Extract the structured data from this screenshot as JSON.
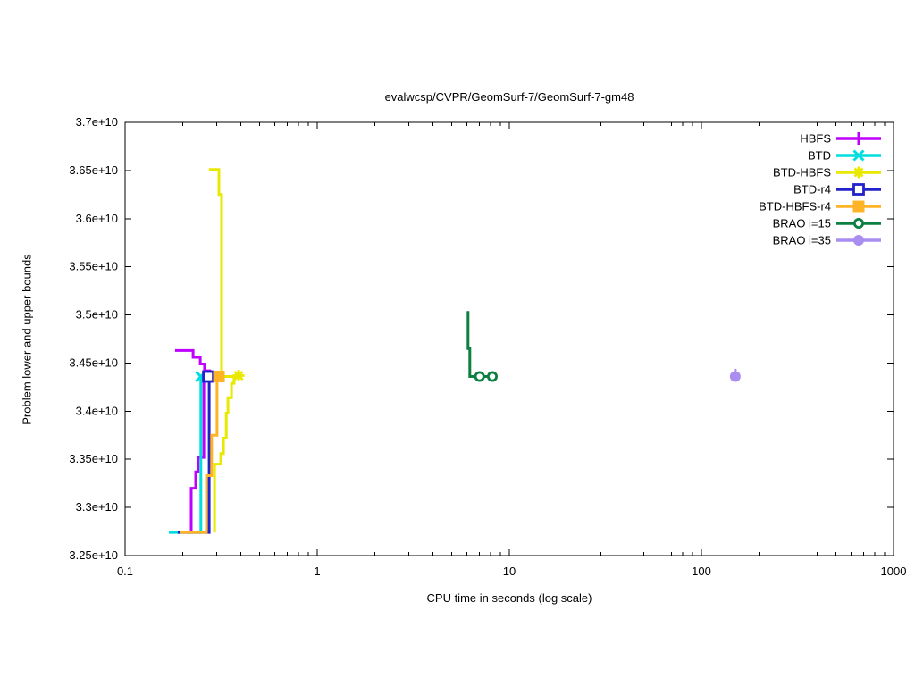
{
  "chart_data": {
    "type": "line",
    "title": "evalwcsp/CVPR/GeomSurf-7/GeomSurf-7-gm48",
    "xlabel": "CPU time in seconds (log scale)",
    "ylabel": "Problem lower and upper bounds",
    "x_scale": "log",
    "y_scale": "linear",
    "xlim": [
      0.1,
      1000
    ],
    "ylim": [
      3.25,
      3.7
    ],
    "value_unit": "1e+10",
    "grid": "off",
    "legend_position": "inside top-right",
    "x_ticks": [
      {
        "label": "0.1",
        "value": 0.1
      },
      {
        "label": "1",
        "value": 1
      },
      {
        "label": "10",
        "value": 10
      },
      {
        "label": "100",
        "value": 100
      },
      {
        "label": "1000",
        "value": 1000
      }
    ],
    "y_ticks": [
      {
        "label": "3.25e+10",
        "value": 3.25
      },
      {
        "label": "3.3e+10",
        "value": 3.3
      },
      {
        "label": "3.35e+10",
        "value": 3.35
      },
      {
        "label": "3.4e+10",
        "value": 3.4
      },
      {
        "label": "3.45e+10",
        "value": 3.45
      },
      {
        "label": "3.5e+10",
        "value": 3.5
      },
      {
        "label": "3.55e+10",
        "value": 3.55
      },
      {
        "label": "3.6e+10",
        "value": 3.6
      },
      {
        "label": "3.65e+10",
        "value": 3.65
      },
      {
        "label": "3.7e+10",
        "value": 3.7
      }
    ],
    "optimum_value": 3.436,
    "series": [
      {
        "name": "HBFS",
        "color": "#bf00ff",
        "marker": "plus",
        "points": [],
        "segments": [
          [
            [
              0.182,
              3.463
            ],
            [
              0.226,
              3.463
            ],
            [
              0.226,
              3.456
            ],
            [
              0.246,
              3.456
            ],
            [
              0.246,
              3.449
            ],
            [
              0.259,
              3.449
            ],
            [
              0.259,
              3.442
            ],
            [
              0.276,
              3.442
            ],
            [
              0.276,
              3.437
            ]
          ],
          [
            [
              0.221,
              3.274
            ],
            [
              0.221,
              3.32
            ],
            [
              0.233,
              3.32
            ],
            [
              0.233,
              3.337
            ],
            [
              0.24,
              3.337
            ],
            [
              0.24,
              3.352
            ],
            [
              0.257,
              3.352
            ],
            [
              0.257,
              3.436
            ],
            [
              0.276,
              3.436
            ]
          ]
        ]
      },
      {
        "name": "BTD",
        "color": "#00dede",
        "marker": "cross",
        "points": [
          [
            0.248,
            3.436
          ]
        ],
        "segments": [
          [
            [
              0.169,
              3.274
            ],
            [
              0.248,
              3.274
            ],
            [
              0.248,
              3.436
            ]
          ]
        ]
      },
      {
        "name": "BTD-HBFS",
        "color": "#e8e800",
        "marker": "star",
        "points": [
          [
            0.39,
            3.437
          ]
        ],
        "segments": [
          [
            [
              0.273,
              3.651
            ],
            [
              0.308,
              3.651
            ],
            [
              0.308,
              3.625
            ],
            [
              0.318,
              3.625
            ],
            [
              0.318,
              3.436
            ],
            [
              0.39,
              3.436
            ]
          ],
          [
            [
              0.292,
              3.274
            ],
            [
              0.292,
              3.345
            ],
            [
              0.315,
              3.345
            ],
            [
              0.315,
              3.356
            ],
            [
              0.325,
              3.356
            ],
            [
              0.325,
              3.372
            ],
            [
              0.336,
              3.372
            ],
            [
              0.336,
              3.398
            ],
            [
              0.343,
              3.398
            ],
            [
              0.343,
              3.414
            ],
            [
              0.358,
              3.414
            ],
            [
              0.358,
              3.429
            ],
            [
              0.369,
              3.429
            ],
            [
              0.369,
              3.434
            ],
            [
              0.39,
              3.436
            ]
          ]
        ]
      },
      {
        "name": "BTD-r4",
        "color": "#2222cc",
        "marker": "square-open",
        "points": [
          [
            0.271,
            3.436
          ]
        ],
        "segments": [
          [
            [
              0.188,
              3.274
            ],
            [
              0.274,
              3.274
            ],
            [
              0.274,
              3.436
            ]
          ]
        ]
      },
      {
        "name": "BTD-HBFS-r4",
        "color": "#ffb428",
        "marker": "square-filled",
        "points": [
          [
            0.308,
            3.436
          ]
        ],
        "segments": [
          [
            [
              0.194,
              3.274
            ],
            [
              0.265,
              3.274
            ],
            [
              0.265,
              3.333
            ],
            [
              0.282,
              3.333
            ],
            [
              0.282,
              3.375
            ],
            [
              0.301,
              3.375
            ],
            [
              0.301,
              3.436
            ],
            [
              0.308,
              3.436
            ]
          ]
        ]
      },
      {
        "name": "BRAO i=15",
        "color": "#0c8040",
        "marker": "circle-open",
        "points": [
          [
            7.0,
            3.436
          ],
          [
            8.16,
            3.436
          ]
        ],
        "segments": [
          [
            [
              6.1,
              3.504
            ],
            [
              6.1,
              3.465
            ],
            [
              6.23,
              3.465
            ],
            [
              6.23,
              3.436
            ],
            [
              8.16,
              3.436
            ]
          ]
        ]
      },
      {
        "name": "BRAO i=35",
        "color": "#a98ef0",
        "marker": "circle-filled",
        "points": [
          [
            150,
            3.436
          ]
        ],
        "segments": [
          [
            [
              150,
              3.444
            ],
            [
              150,
              3.436
            ]
          ]
        ]
      }
    ]
  }
}
